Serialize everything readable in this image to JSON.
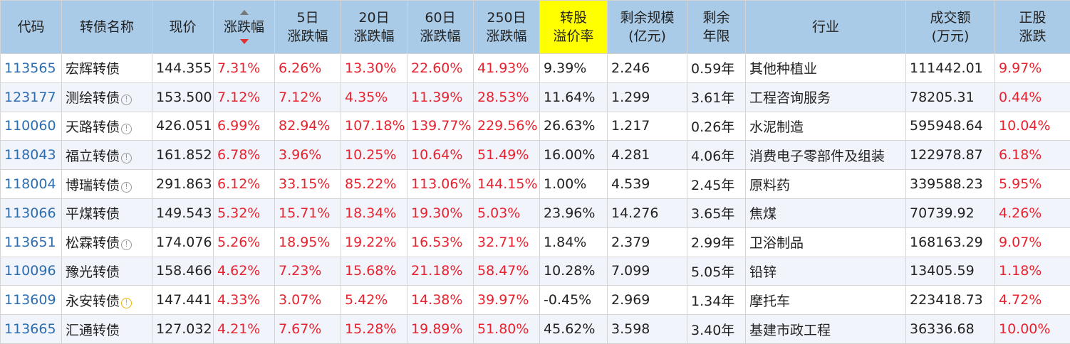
{
  "headers": [
    {
      "l1": "代码",
      "l2": ""
    },
    {
      "l1": "转债名称",
      "l2": ""
    },
    {
      "l1": "现价",
      "l2": ""
    },
    {
      "l1": "涨跌幅",
      "l2": ""
    },
    {
      "l1": "5日",
      "l2": "涨跌幅"
    },
    {
      "l1": "20日",
      "l2": "涨跌幅"
    },
    {
      "l1": "60日",
      "l2": "涨跌幅"
    },
    {
      "l1": "250日",
      "l2": "涨跌幅"
    },
    {
      "l1": "转股",
      "l2": "溢价率"
    },
    {
      "l1": "剩余规模",
      "l2": "(亿元)"
    },
    {
      "l1": "剩余",
      "l2": "年限"
    },
    {
      "l1": "行业",
      "l2": ""
    },
    {
      "l1": "成交额",
      "l2": "(万元)"
    },
    {
      "l1": "正股",
      "l2": "涨跌"
    }
  ],
  "highlight_color": "#ffff00",
  "header_color": "#a9cbe8",
  "rise_color": "#e8222e",
  "code_color": "#2c6db0",
  "rows": [
    {
      "code": "113565",
      "name": "宏辉转债",
      "icon": "none",
      "price": "144.355",
      "chg": "7.31%",
      "chg5": "6.26%",
      "chg20": "13.30%",
      "chg60": "22.60%",
      "chg250": "41.93%",
      "premium": "9.39%",
      "scale": "2.246",
      "years": "0.59年",
      "industry": "其他种植业",
      "volume": "111442.01",
      "stock_chg": "9.97%"
    },
    {
      "code": "123177",
      "name": "测绘转债",
      "icon": "info-icon",
      "price": "153.500",
      "chg": "7.12%",
      "chg5": "7.12%",
      "chg20": "4.35%",
      "chg60": "11.39%",
      "chg250": "28.53%",
      "premium": "11.64%",
      "scale": "1.299",
      "years": "3.61年",
      "industry": "工程咨询服务",
      "volume": "78205.31",
      "stock_chg": "0.44%"
    },
    {
      "code": "110060",
      "name": "天路转债",
      "icon": "info-icon",
      "price": "426.051",
      "chg": "6.99%",
      "chg5": "82.94%",
      "chg20": "107.18%",
      "chg60": "139.77%",
      "chg250": "229.56%",
      "premium": "26.63%",
      "scale": "1.217",
      "years": "0.26年",
      "industry": "水泥制造",
      "volume": "595948.64",
      "stock_chg": "10.04%"
    },
    {
      "code": "118043",
      "name": "福立转债",
      "icon": "info-icon",
      "price": "161.852",
      "chg": "6.78%",
      "chg5": "3.96%",
      "chg20": "10.25%",
      "chg60": "10.64%",
      "chg250": "51.49%",
      "premium": "16.00%",
      "scale": "4.281",
      "years": "4.06年",
      "industry": "消费电子零部件及组装",
      "volume": "122978.87",
      "stock_chg": "6.18%"
    },
    {
      "code": "118004",
      "name": "博瑞转债",
      "icon": "info-icon",
      "price": "291.863",
      "chg": "6.12%",
      "chg5": "33.15%",
      "chg20": "85.22%",
      "chg60": "113.06%",
      "chg250": "144.15%",
      "premium": "1.00%",
      "scale": "4.539",
      "years": "2.45年",
      "industry": "原料药",
      "volume": "339588.23",
      "stock_chg": "5.95%"
    },
    {
      "code": "113066",
      "name": "平煤转债",
      "icon": "none",
      "price": "149.543",
      "chg": "5.32%",
      "chg5": "15.71%",
      "chg20": "18.34%",
      "chg60": "19.30%",
      "chg250": "5.03%",
      "premium": "23.96%",
      "scale": "14.276",
      "years": "3.65年",
      "industry": "焦煤",
      "volume": "70739.92",
      "stock_chg": "4.26%"
    },
    {
      "code": "113651",
      "name": "松霖转债",
      "icon": "info-icon",
      "price": "174.076",
      "chg": "5.26%",
      "chg5": "18.95%",
      "chg20": "19.22%",
      "chg60": "16.53%",
      "chg250": "32.71%",
      "premium": "1.84%",
      "scale": "2.379",
      "years": "2.99年",
      "industry": "卫浴制品",
      "volume": "168163.29",
      "stock_chg": "9.07%"
    },
    {
      "code": "110096",
      "name": "豫光转债",
      "icon": "none",
      "price": "158.466",
      "chg": "4.62%",
      "chg5": "7.23%",
      "chg20": "15.68%",
      "chg60": "21.18%",
      "chg250": "58.47%",
      "premium": "10.28%",
      "scale": "7.099",
      "years": "5.05年",
      "industry": "铅锌",
      "volume": "13405.59",
      "stock_chg": "1.18%"
    },
    {
      "code": "113609",
      "name": "永安转债",
      "icon": "warning-icon",
      "price": "147.441",
      "chg": "4.33%",
      "chg5": "3.07%",
      "chg20": "5.42%",
      "chg60": "14.38%",
      "chg250": "39.97%",
      "premium": "-0.45%",
      "scale": "2.969",
      "years": "1.34年",
      "industry": "摩托车",
      "volume": "223418.73",
      "stock_chg": "4.72%"
    },
    {
      "code": "113665",
      "name": "汇通转债",
      "icon": "none",
      "price": "127.032",
      "chg": "4.21%",
      "chg5": "7.67%",
      "chg20": "15.28%",
      "chg60": "19.89%",
      "chg250": "51.80%",
      "premium": "45.62%",
      "scale": "3.598",
      "years": "3.40年",
      "industry": "基建市政工程",
      "volume": "36336.68",
      "stock_chg": "10.00%"
    }
  ]
}
